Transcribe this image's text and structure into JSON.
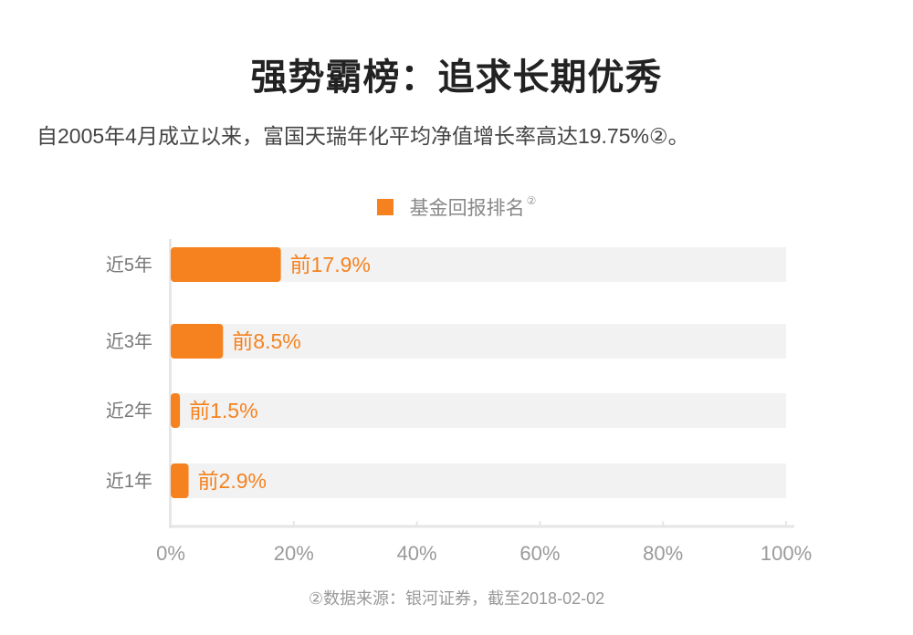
{
  "title": "强势霸榜：追求长期优秀",
  "subtitle": "自2005年4月成立以来，富国天瑞年化平均净值增长率高达19.75%②。",
  "legend": {
    "label": "基金回报排名",
    "note": "②"
  },
  "footnote": "②数据来源：银河证券，截至2018-02-02",
  "colors": {
    "bar": "#f5821f",
    "track": "#f2f2f2",
    "label": "#f5821f",
    "axis": "#e6e6e6",
    "tick_text": "#9a9a9a"
  },
  "chart_data": {
    "type": "bar",
    "orientation": "horizontal",
    "categories": [
      "近5年",
      "近3年",
      "近2年",
      "近1年"
    ],
    "series": [
      {
        "name": "基金回报排名",
        "values": [
          17.9,
          8.5,
          1.5,
          2.9
        ]
      }
    ],
    "data_labels": [
      "前17.9%",
      "前8.5%",
      "前1.5%",
      "前2.9%"
    ],
    "x_ticks": [
      "0%",
      "20%",
      "40%",
      "60%",
      "80%",
      "100%"
    ],
    "xlim": [
      0,
      100
    ],
    "grid": false,
    "legend_position": "top"
  }
}
